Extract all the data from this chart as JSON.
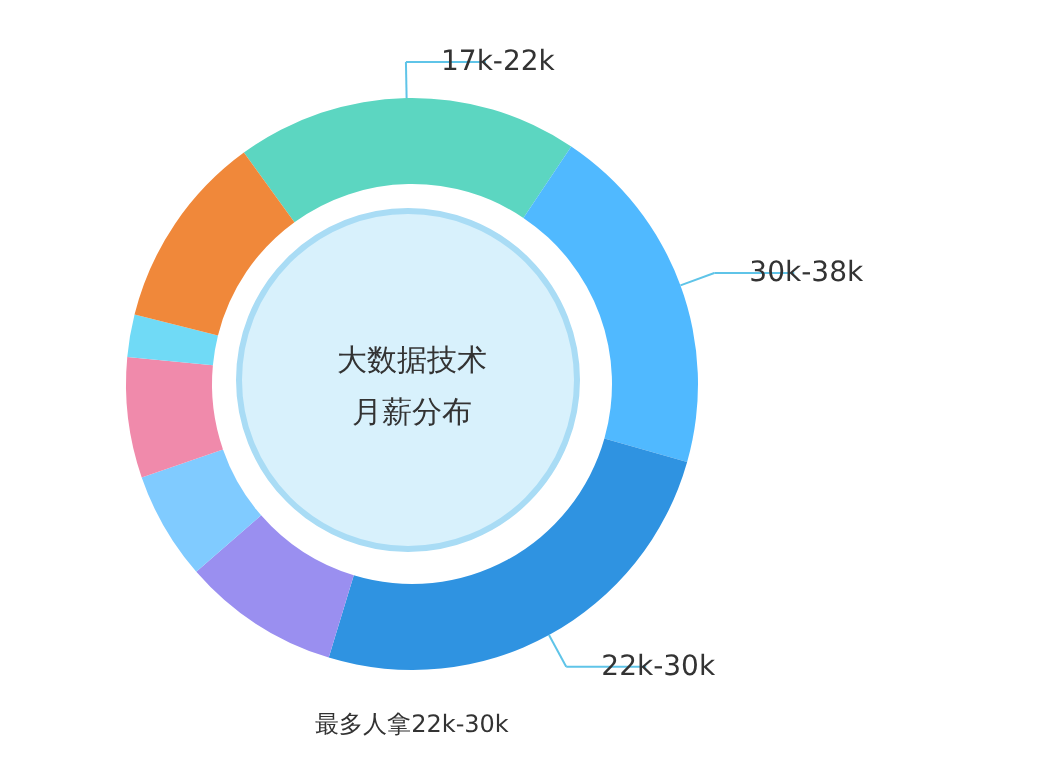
{
  "chart_data": {
    "type": "donut",
    "title": "大数据技术",
    "subtitle": "月薪分布",
    "categories": [
      "17k-22k",
      "30k-38k",
      "22k-30k",
      null,
      null,
      null,
      null,
      null
    ],
    "values": [
      19.4,
      20,
      25.3,
      8.9,
      6.1,
      6.8,
      2.4,
      11.1
    ],
    "colors": [
      "#5cd6c1",
      "#50b9ff",
      "#2f93e1",
      "#9a8ff0",
      "#80cbff",
      "#f08aab",
      "#70daf6",
      "#f0883a"
    ],
    "annotations": [
      "最多人拿22k-30k"
    ]
  }
}
